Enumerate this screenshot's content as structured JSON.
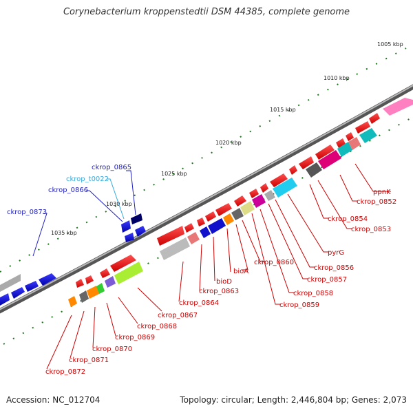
{
  "title": "Corynebacterium kroppenstedtii DSM 44385, complete genome",
  "footer": {
    "accession": "Accession: NC_012704",
    "summary": "Topology: circular; Length: 2,446,804 bp; Genes: 2,073"
  },
  "ruler": {
    "unit": "kbp",
    "ticks": [
      {
        "label": "1005 kbp",
        "kbp": 1005
      },
      {
        "label": "1010 kbp",
        "kbp": 1010
      },
      {
        "label": "1015 kbp",
        "kbp": 1015
      },
      {
        "label": "1020 kbp",
        "kbp": 1020
      },
      {
        "label": "1025 kbp",
        "kbp": 1025
      },
      {
        "label": "1030 kbp",
        "kbp": 1030
      },
      {
        "label": "1035 kbp",
        "kbp": 1035
      }
    ]
  },
  "colors": {
    "plus_label": "#1f1fbf",
    "trna_label": "#33aadd",
    "minus_label": "#cc0000",
    "backbone": "#777777",
    "tick": "#1a7a1a"
  },
  "gene_labels_plus": [
    {
      "name": "ckrop_0865",
      "color": "#1f1fbf"
    },
    {
      "name": "ckrop_t0022",
      "color": "#33aadd"
    },
    {
      "name": "ckrop_0866",
      "color": "#1f1fbf"
    },
    {
      "name": "ckrop_0873",
      "color": "#1f1fbf"
    }
  ],
  "gene_labels_minus": [
    {
      "name": "ppnK"
    },
    {
      "name": "ckrop_0852"
    },
    {
      "name": "ckrop_0854"
    },
    {
      "name": "ckrop_0853"
    },
    {
      "name": "pyrG"
    },
    {
      "name": "ckrop_0856"
    },
    {
      "name": "ckrop_0857"
    },
    {
      "name": "ckrop_0858"
    },
    {
      "name": "ckrop_0859"
    },
    {
      "name": "ckrop_0860"
    },
    {
      "name": "bioA"
    },
    {
      "name": "bioD"
    },
    {
      "name": "ckrop_0863"
    },
    {
      "name": "ckrop_0864"
    },
    {
      "name": "ckrop_0867"
    },
    {
      "name": "ckrop_0868"
    },
    {
      "name": "ckrop_0869"
    },
    {
      "name": "ckrop_0870"
    },
    {
      "name": "ckrop_0871"
    },
    {
      "name": "ckrop_0872"
    }
  ]
}
